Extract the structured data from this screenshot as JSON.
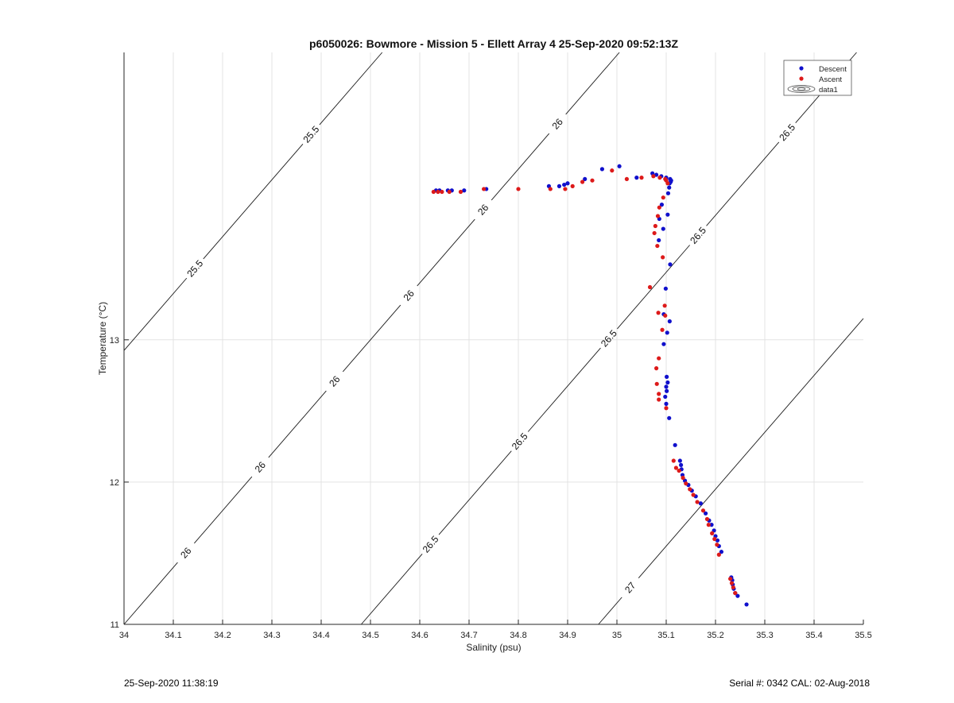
{
  "chart_data": {
    "type": "scatter",
    "title": "p6050026: Bowmore - Mission 5 - Ellett Array 4 25-Sep-2020 09:52:13Z",
    "xlabel": "Salinity (psu)",
    "ylabel": "Temperature (°C)",
    "xlim": [
      34,
      35.5
    ],
    "ylim": [
      11,
      15.02
    ],
    "x_ticks": [
      34,
      34.1,
      34.2,
      34.3,
      34.4,
      34.5,
      34.6,
      34.7,
      34.8,
      34.9,
      35,
      35.1,
      35.2,
      35.3,
      35.4,
      35.5
    ],
    "x_tick_labels": [
      "34",
      "34.1",
      "34.2",
      "34.3",
      "34.4",
      "34.5",
      "34.6",
      "34.7",
      "34.8",
      "34.9",
      "35",
      "35.1",
      "35.2",
      "35.3",
      "35.4",
      "35.5"
    ],
    "y_ticks": [
      11,
      12,
      13
    ],
    "y_tick_labels": [
      "11",
      "12",
      "13"
    ],
    "grid": true,
    "legend_position": "top-right",
    "legend": [
      {
        "label": "Descent",
        "type": "marker",
        "color": "#1010cc"
      },
      {
        "label": "Ascent",
        "type": "marker",
        "color": "#dd1a1a"
      },
      {
        "label": "data1",
        "type": "contour"
      }
    ],
    "series": [
      {
        "name": "Descent",
        "color": "#1010cc",
        "points": [
          [
            35.263,
            11.14
          ],
          [
            35.245,
            11.2
          ],
          [
            35.24,
            11.22
          ],
          [
            35.237,
            11.25
          ],
          [
            35.235,
            11.28
          ],
          [
            35.234,
            11.31
          ],
          [
            35.232,
            11.33
          ],
          [
            35.212,
            11.51
          ],
          [
            35.207,
            11.55
          ],
          [
            35.204,
            11.59
          ],
          [
            35.2,
            11.62
          ],
          [
            35.197,
            11.66
          ],
          [
            35.192,
            11.7
          ],
          [
            35.187,
            11.73
          ],
          [
            35.18,
            11.78
          ],
          [
            35.17,
            11.85
          ],
          [
            35.16,
            11.9
          ],
          [
            35.152,
            11.94
          ],
          [
            35.145,
            11.98
          ],
          [
            35.138,
            12.01
          ],
          [
            35.133,
            12.05
          ],
          [
            35.131,
            12.09
          ],
          [
            35.13,
            12.12
          ],
          [
            35.128,
            12.15
          ],
          [
            35.118,
            12.26
          ],
          [
            35.106,
            12.45
          ],
          [
            35.1,
            12.55
          ],
          [
            35.098,
            12.6
          ],
          [
            35.101,
            12.64
          ],
          [
            35.1,
            12.67
          ],
          [
            35.103,
            12.7
          ],
          [
            35.101,
            12.74
          ],
          [
            35.095,
            12.97
          ],
          [
            35.102,
            13.05
          ],
          [
            35.107,
            13.13
          ],
          [
            35.095,
            13.18
          ],
          [
            35.099,
            13.36
          ],
          [
            35.108,
            13.53
          ],
          [
            35.085,
            13.7
          ],
          [
            35.094,
            13.78
          ],
          [
            35.086,
            13.85
          ],
          [
            35.103,
            13.88
          ],
          [
            35.091,
            13.95
          ],
          [
            35.104,
            14.03
          ],
          [
            35.106,
            14.07
          ],
          [
            35.107,
            14.1
          ],
          [
            35.109,
            14.11
          ],
          [
            35.11,
            14.12
          ],
          [
            35.108,
            14.13
          ],
          [
            35.1,
            14.14
          ],
          [
            35.09,
            14.15
          ],
          [
            35.08,
            14.16
          ],
          [
            35.072,
            14.17
          ],
          [
            35.04,
            14.14
          ],
          [
            35.005,
            14.22
          ],
          [
            34.97,
            14.2
          ],
          [
            34.935,
            14.13
          ],
          [
            34.9,
            14.1
          ],
          [
            34.893,
            14.09
          ],
          [
            34.883,
            14.08
          ],
          [
            34.862,
            14.08
          ],
          [
            34.735,
            14.06
          ],
          [
            34.69,
            14.05
          ],
          [
            34.665,
            14.05
          ],
          [
            34.657,
            14.05
          ],
          [
            34.64,
            14.05
          ],
          [
            34.633,
            14.05
          ]
        ]
      },
      {
        "name": "Ascent",
        "color": "#dd1a1a",
        "points": [
          [
            35.24,
            11.22
          ],
          [
            35.236,
            11.26
          ],
          [
            35.233,
            11.29
          ],
          [
            35.23,
            11.32
          ],
          [
            35.207,
            11.49
          ],
          [
            35.203,
            11.56
          ],
          [
            35.198,
            11.6
          ],
          [
            35.193,
            11.64
          ],
          [
            35.186,
            11.7
          ],
          [
            35.183,
            11.74
          ],
          [
            35.175,
            11.8
          ],
          [
            35.163,
            11.86
          ],
          [
            35.155,
            11.91
          ],
          [
            35.148,
            11.95
          ],
          [
            35.14,
            11.99
          ],
          [
            35.134,
            12.03
          ],
          [
            35.126,
            12.08
          ],
          [
            35.12,
            12.1
          ],
          [
            35.115,
            12.15
          ],
          [
            35.1,
            12.52
          ],
          [
            35.085,
            12.58
          ],
          [
            35.085,
            12.62
          ],
          [
            35.081,
            12.69
          ],
          [
            35.08,
            12.8
          ],
          [
            35.085,
            12.87
          ],
          [
            35.092,
            13.07
          ],
          [
            35.098,
            13.17
          ],
          [
            35.097,
            13.24
          ],
          [
            35.084,
            13.19
          ],
          [
            35.067,
            13.37
          ],
          [
            35.093,
            13.58
          ],
          [
            35.082,
            13.66
          ],
          [
            35.076,
            13.75
          ],
          [
            35.078,
            13.8
          ],
          [
            35.083,
            13.87
          ],
          [
            35.086,
            13.93
          ],
          [
            35.094,
            14.0
          ],
          [
            35.103,
            14.1
          ],
          [
            35.1,
            14.12
          ],
          [
            35.098,
            14.13
          ],
          [
            35.087,
            14.14
          ],
          [
            35.074,
            14.15
          ],
          [
            35.05,
            14.14
          ],
          [
            35.02,
            14.13
          ],
          [
            34.99,
            14.19
          ],
          [
            34.95,
            14.12
          ],
          [
            34.93,
            14.11
          ],
          [
            34.91,
            14.08
          ],
          [
            34.895,
            14.06
          ],
          [
            34.865,
            14.06
          ],
          [
            34.8,
            14.06
          ],
          [
            34.73,
            14.06
          ],
          [
            34.683,
            14.04
          ],
          [
            34.66,
            14.04
          ],
          [
            34.645,
            14.04
          ],
          [
            34.637,
            14.04
          ],
          [
            34.628,
            14.04
          ]
        ]
      }
    ],
    "contours": [
      {
        "sigma": 25.5,
        "labels": [
          "25.5",
          "25.5"
        ]
      },
      {
        "sigma": 26.0,
        "labels": [
          "26",
          "26",
          "26",
          "26",
          "26",
          "26"
        ]
      },
      {
        "sigma": 26.5,
        "labels": [
          "26.5",
          "26.5",
          "26.5",
          "26.5",
          "26.5"
        ]
      },
      {
        "sigma": 27.0,
        "labels": [
          "27"
        ]
      }
    ]
  },
  "footer": {
    "left": "25-Sep-2020 11:38:19",
    "right": "Serial #: 0342  CAL: 02-Aug-2018"
  }
}
